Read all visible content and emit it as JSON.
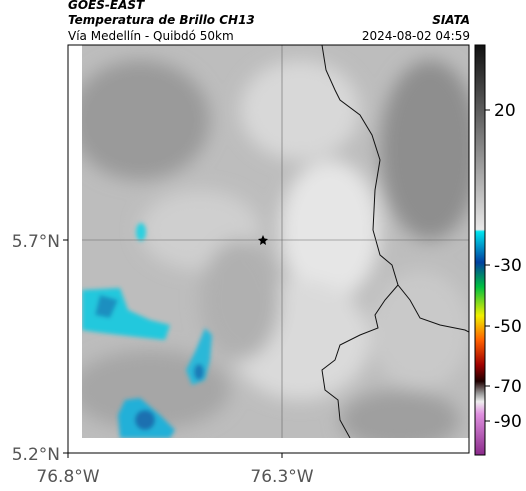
{
  "header": {
    "satellite": "GOES-EAST",
    "product": "Temperatura de Brillo CH13",
    "route": "Vía Medellín - Quibdó 50km",
    "source": "SIATA",
    "timestamp": "2024-08-02 04:59"
  },
  "axes": {
    "latitude_labels": [
      "5.7°N",
      "5.2°N"
    ],
    "longitude_labels": [
      "76.8°W",
      "76.3°W"
    ]
  },
  "colorbar": {
    "tick_labels": [
      20,
      -30,
      -50,
      -70,
      -90
    ]
  }
}
